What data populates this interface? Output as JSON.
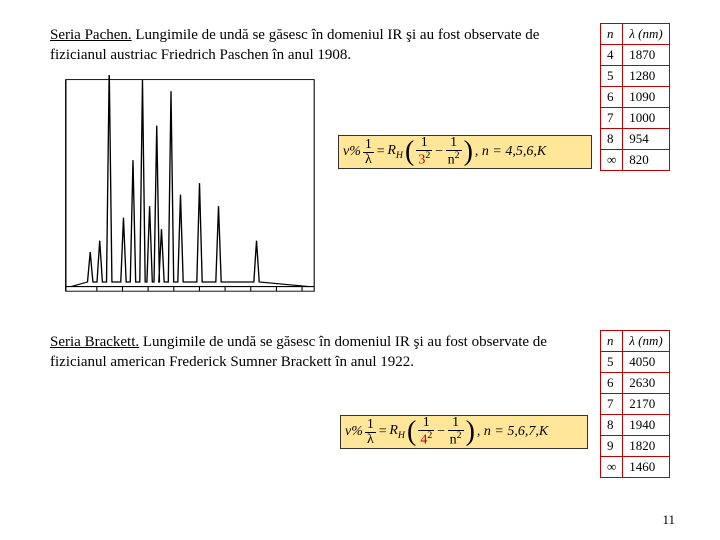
{
  "section1": {
    "title": "Seria Pachen.",
    "body": " Lungimile de undă se găsesc în domeniul IR şi au fost observate de fizicianul austriac Friedrich Paschen în anul 1908."
  },
  "section2": {
    "title": "Seria Brackett.",
    "body": " Lungimile de undă se găsesc în domeniul IR şi au fost observate de fizicianul american Frederick Sumner Brackett în anul 1922."
  },
  "table1": {
    "header": {
      "n": "n",
      "lambda": "λ (nm)"
    },
    "rows": [
      {
        "n": "4",
        "lambda": "1870"
      },
      {
        "n": "5",
        "lambda": "1280"
      },
      {
        "n": "6",
        "lambda": "1090"
      },
      {
        "n": "7",
        "lambda": "1000"
      },
      {
        "n": "8",
        "lambda": "954"
      },
      {
        "n": "∞",
        "lambda": "820"
      }
    ]
  },
  "table2": {
    "header": {
      "n": "n",
      "lambda": "λ (nm)"
    },
    "rows": [
      {
        "n": "5",
        "lambda": "4050"
      },
      {
        "n": "6",
        "lambda": "2630"
      },
      {
        "n": "7",
        "lambda": "2170"
      },
      {
        "n": "8",
        "lambda": "1940"
      },
      {
        "n": "9",
        "lambda": "1820"
      },
      {
        "n": "∞",
        "lambda": "1460"
      }
    ]
  },
  "formula1": {
    "prefix": "ν%",
    "lhs_num": "1",
    "lhs_den": "λ",
    "eq": "=",
    "R": "R",
    "Rsub": "H",
    "t1num": "1",
    "t1den": "3",
    "t1densup": "2",
    "minus": "−",
    "t2num": "1",
    "t2den": "n",
    "t2densup": "2",
    "tail": ",  n = 4,5,6,K"
  },
  "formula2": {
    "prefix": "ν%",
    "lhs_num": "1",
    "lhs_den": "λ",
    "eq": "=",
    "R": "R",
    "Rsub": "H",
    "t1num": "1",
    "t1den": "4",
    "t1densup": "2",
    "minus": "−",
    "t2num": "1",
    "t2den": "n",
    "t2densup": "2",
    "tail": ",  n = 5,6,7,K"
  },
  "chart": {
    "type": "line-spectrum",
    "x_range": [
      0,
      100
    ],
    "y_range": [
      0,
      100
    ],
    "axis_color": "#000000",
    "line_color": "#000000",
    "line_width": 1,
    "peaks_x": [
      8,
      12,
      16,
      22,
      26,
      30,
      33,
      36,
      38,
      42,
      46,
      54,
      62,
      78
    ],
    "peaks_h": [
      15,
      20,
      95,
      30,
      55,
      90,
      35,
      70,
      25,
      85,
      40,
      45,
      35,
      20
    ],
    "baseline": 92
  },
  "pagenum": "11"
}
